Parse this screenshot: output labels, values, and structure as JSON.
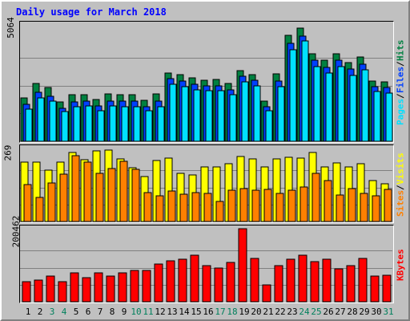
{
  "title": "Daily usage for March 2018",
  "colors": {
    "hits": "#008040",
    "files": "#0040ff",
    "pages": "#00e0ff",
    "visits": "#ffff00",
    "sites": "#ff8000",
    "kbytes": "#ff0000",
    "weekend_label": "#00805c",
    "weekday_label": "#000000"
  },
  "legend": {
    "hits_panel": [
      {
        "text": "Pages",
        "color": "#00e0ff"
      },
      {
        "text": " / ",
        "color": "#000000"
      },
      {
        "text": "Files",
        "color": "#0040ff"
      },
      {
        "text": " / ",
        "color": "#000000"
      },
      {
        "text": "Hits",
        "color": "#008040"
      }
    ],
    "sites_panel": [
      {
        "text": "Sites",
        "color": "#ff8000"
      },
      {
        "text": " / ",
        "color": "#000000"
      },
      {
        "text": "Visits",
        "color": "#ffff00"
      }
    ],
    "kb_panel": [
      {
        "text": "KBytes",
        "color": "#ff0000"
      }
    ]
  },
  "chart_data": {
    "type": "bar",
    "title": "Daily usage for March 2018",
    "categories": [
      "1",
      "2",
      "3",
      "4",
      "5",
      "6",
      "7",
      "8",
      "9",
      "10",
      "11",
      "12",
      "13",
      "14",
      "15",
      "16",
      "17",
      "18",
      "19",
      "20",
      "21",
      "22",
      "23",
      "24",
      "25",
      "26",
      "27",
      "28",
      "29",
      "30",
      "31"
    ],
    "weekend_days": [
      3,
      4,
      10,
      11,
      17,
      18,
      24,
      25,
      31
    ],
    "panels": [
      {
        "name": "hits",
        "ymax_label": "5064",
        "ylim": [
          0,
          5064
        ],
        "series": [
          {
            "name": "Hits",
            "values": [
              1950,
              2590,
              2400,
              1760,
              2080,
              2090,
              1880,
              2110,
              2100,
              2080,
              1840,
              2110,
              3060,
              2970,
              2830,
              2740,
              2750,
              2570,
              3160,
              2990,
              1800,
              3000,
              4740,
              5064,
              3920,
              3620,
              3920,
              3520,
              3760,
              2710,
              2650
            ]
          },
          {
            "name": "Files",
            "values": [
              1640,
              2190,
              2000,
              1480,
              1770,
              1780,
              1580,
              1800,
              1780,
              1780,
              1550,
              1800,
              2800,
              2700,
              2540,
              2470,
              2480,
              2310,
              2900,
              2740,
              1550,
              2700,
              4370,
              4720,
              3620,
              3320,
              3620,
              3220,
              3450,
              2440,
              2390
            ]
          },
          {
            "name": "Pages",
            "values": [
              1420,
              1950,
              1800,
              1320,
              1560,
              1570,
              1380,
              1570,
              1560,
              1560,
              1350,
              1560,
              2540,
              2430,
              2300,
              2250,
              2260,
              2100,
              2640,
              2490,
              1350,
              2450,
              4100,
              4490,
              3340,
              3060,
              3330,
              2950,
              3180,
              2220,
              2170
            ]
          }
        ]
      },
      {
        "name": "sites",
        "ymax_label": "269",
        "ylim": [
          0,
          269
        ],
        "series": [
          {
            "name": "Visits",
            "values": [
              220,
              220,
              190,
              218,
              253,
              229,
              260,
              262,
              230,
              199,
              165,
              224,
              235,
              176,
              170,
              200,
              200,
              214,
              240,
              230,
              200,
              230,
              236,
              234,
              254,
              200,
              217,
              202,
              214,
              150,
              140
            ]
          },
          {
            "name": "Sites",
            "values": [
              137,
              90,
              142,
              175,
              243,
              218,
              176,
              194,
              222,
              192,
              105,
              95,
              113,
              100,
              105,
              103,
              74,
              114,
              120,
              116,
              117,
              102,
              115,
              128,
              176,
              150,
              99,
              120,
              102,
              94,
              119
            ]
          }
        ]
      },
      {
        "name": "kbytes",
        "ymax_label": "200462",
        "ylim": [
          0,
          200462
        ],
        "series": [
          {
            "name": "KBytes",
            "values": [
              56000,
              60000,
              70000,
              55000,
              80000,
              67000,
              80000,
              71000,
              80000,
              85000,
              85000,
              104000,
              113000,
              117000,
              128000,
              100000,
              93000,
              109000,
              200462,
              118000,
              46000,
              100000,
              117000,
              127000,
              110000,
              116000,
              91000,
              100000,
              118000,
              70000,
              72000
            ]
          }
        ]
      }
    ],
    "xlabel": "",
    "ylabel": ""
  }
}
